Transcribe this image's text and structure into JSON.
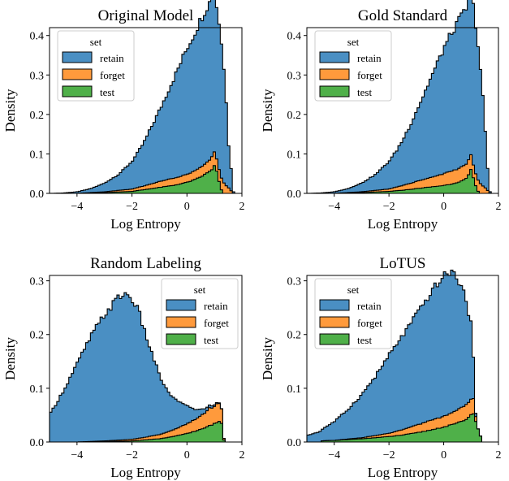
{
  "chart_data": [
    {
      "type": "area",
      "title": "Original Model",
      "xlabel": "Log Entropy",
      "ylabel": "Density",
      "xlim": [
        -5,
        2
      ],
      "ylim": [
        0,
        0.42
      ],
      "xticks": [
        -4,
        -2,
        0,
        2
      ],
      "yticks": [
        0.0,
        0.1,
        0.2,
        0.3,
        0.4
      ],
      "ytick_labels": [
        "0.0",
        "0.1",
        "0.2",
        "0.3",
        "0.4"
      ],
      "stacked": true,
      "legend": {
        "title": "set",
        "position": "top-left"
      },
      "series": [
        {
          "name": "retain",
          "color": "#4a8fc3",
          "x": [
            -5,
            -4.5,
            -4,
            -3.5,
            -3,
            -2.5,
            -2,
            -1.75,
            -1.5,
            -1.25,
            -1,
            -0.75,
            -0.5,
            -0.25,
            0,
            0.25,
            0.5,
            0.75,
            0.9,
            1.0,
            1.1,
            1.2,
            1.3,
            1.4,
            1.45,
            1.5,
            1.65,
            1.7
          ],
          "values": [
            0.0,
            0.001,
            0.004,
            0.01,
            0.022,
            0.04,
            0.07,
            0.092,
            0.118,
            0.15,
            0.18,
            0.215,
            0.25,
            0.285,
            0.32,
            0.345,
            0.375,
            0.395,
            0.405,
            0.4,
            0.385,
            0.365,
            0.32,
            0.26,
            0.19,
            0.12,
            0.03,
            0.0
          ]
        },
        {
          "name": "forget",
          "color": "#ff9a3c",
          "x": [
            -4,
            -3,
            -2,
            -1.5,
            -1,
            -0.5,
            0,
            0.3,
            0.6,
            0.8,
            0.9,
            1.0,
            1.1,
            1.2,
            1.3,
            1.4,
            1.5,
            1.6,
            1.7
          ],
          "values": [
            0.0,
            0.002,
            0.006,
            0.01,
            0.015,
            0.018,
            0.02,
            0.022,
            0.025,
            0.028,
            0.032,
            0.035,
            0.03,
            0.03,
            0.03,
            0.022,
            0.015,
            0.007,
            0.0
          ]
        },
        {
          "name": "test",
          "color": "#4fb049",
          "x": [
            -4,
            -3,
            -2,
            -1.5,
            -1,
            -0.5,
            0,
            0.3,
            0.5,
            0.7,
            0.8,
            0.9,
            1.0,
            1.1,
            1.2,
            1.3
          ],
          "values": [
            0.0,
            0.002,
            0.005,
            0.01,
            0.015,
            0.02,
            0.028,
            0.035,
            0.042,
            0.05,
            0.055,
            0.06,
            0.07,
            0.052,
            0.02,
            0.0
          ]
        }
      ]
    },
    {
      "type": "area",
      "title": "Gold Standard",
      "xlabel": "Log Entropy",
      "ylabel": "Density",
      "xlim": [
        -5,
        2
      ],
      "ylim": [
        0,
        0.42
      ],
      "xticks": [
        -4,
        -2,
        0,
        2
      ],
      "yticks": [
        0.0,
        0.1,
        0.2,
        0.3,
        0.4
      ],
      "ytick_labels": [
        "0.0",
        "0.1",
        "0.2",
        "0.3",
        "0.4"
      ],
      "stacked": true,
      "legend": {
        "title": "set",
        "position": "top-left"
      },
      "series": [
        {
          "name": "retain",
          "color": "#4a8fc3",
          "x": [
            -5,
            -4.5,
            -4,
            -3.5,
            -3,
            -2.5,
            -2,
            -1.75,
            -1.5,
            -1.25,
            -1,
            -0.75,
            -0.5,
            -0.25,
            0,
            0.25,
            0.5,
            0.75,
            0.9,
            1.0,
            1.1,
            1.2,
            1.3,
            1.4,
            1.5,
            1.55,
            1.7
          ],
          "values": [
            0.0,
            0.001,
            0.004,
            0.01,
            0.022,
            0.04,
            0.07,
            0.09,
            0.115,
            0.145,
            0.178,
            0.212,
            0.248,
            0.282,
            0.318,
            0.345,
            0.37,
            0.39,
            0.4,
            0.41,
            0.4,
            0.37,
            0.32,
            0.25,
            0.17,
            0.09,
            0.0
          ]
        },
        {
          "name": "forget",
          "color": "#ff9a3c",
          "x": [
            -4,
            -3,
            -2,
            -1.5,
            -1,
            -0.5,
            0,
            0.3,
            0.6,
            0.8,
            1.0,
            1.1,
            1.2,
            1.3,
            1.4,
            1.5,
            1.6,
            1.7
          ],
          "values": [
            0.0,
            0.002,
            0.006,
            0.012,
            0.018,
            0.024,
            0.03,
            0.033,
            0.035,
            0.036,
            0.038,
            0.03,
            0.03,
            0.028,
            0.02,
            0.015,
            0.008,
            0.0
          ]
        },
        {
          "name": "test",
          "color": "#4fb049",
          "x": [
            -4,
            -3,
            -2,
            -1.5,
            -1,
            -0.5,
            0,
            0.3,
            0.6,
            0.8,
            0.9,
            1.0,
            1.1,
            1.2,
            1.3
          ],
          "values": [
            0.0,
            0.002,
            0.005,
            0.008,
            0.012,
            0.016,
            0.02,
            0.024,
            0.03,
            0.036,
            0.045,
            0.06,
            0.035,
            0.012,
            0.0
          ]
        }
      ]
    },
    {
      "type": "area",
      "title": "Random Labeling",
      "xlabel": "Log Entropy",
      "ylabel": "Density",
      "xlim": [
        -5,
        2
      ],
      "ylim": [
        0,
        0.31
      ],
      "xticks": [
        -4,
        -2,
        0,
        2
      ],
      "yticks": [
        0.0,
        0.1,
        0.2,
        0.3
      ],
      "ytick_labels": [
        "0.0",
        "0.1",
        "0.2",
        "0.3"
      ],
      "stacked": true,
      "legend": {
        "title": "set",
        "position": "top-right"
      },
      "series": [
        {
          "name": "retain",
          "color": "#4a8fc3",
          "x": [
            -5,
            -4.5,
            -4,
            -3.5,
            -3,
            -2.5,
            -2.25,
            -2,
            -1.75,
            -1.5,
            -1.25,
            -1,
            -0.75,
            -0.5,
            -0.25,
            0,
            0.25,
            0.5,
            0.75,
            1.0,
            1.2,
            1.3,
            1.35
          ],
          "values": [
            0.05,
            0.095,
            0.145,
            0.195,
            0.235,
            0.265,
            0.272,
            0.262,
            0.235,
            0.19,
            0.15,
            0.11,
            0.08,
            0.06,
            0.045,
            0.035,
            0.02,
            0.012,
            0.006,
            0.003,
            0.001,
            0.0,
            0.0
          ]
        },
        {
          "name": "forget",
          "color": "#ff9a3c",
          "x": [
            -5,
            -4,
            -3,
            -2,
            -1.5,
            -1,
            -0.5,
            0,
            0.3,
            0.6,
            0.8,
            1.0,
            1.1,
            1.2,
            1.3,
            1.35
          ],
          "values": [
            0.0,
            0.0,
            0.001,
            0.003,
            0.005,
            0.008,
            0.012,
            0.018,
            0.022,
            0.027,
            0.032,
            0.032,
            0.035,
            0.032,
            0.022,
            0.0
          ]
        },
        {
          "name": "test",
          "color": "#4fb049",
          "x": [
            -4,
            -3,
            -2,
            -1.5,
            -1,
            -0.5,
            0,
            0.3,
            0.6,
            0.8,
            1.0,
            1.1,
            1.2,
            1.3,
            1.35
          ],
          "values": [
            0.0,
            0.001,
            0.002,
            0.004,
            0.006,
            0.01,
            0.016,
            0.02,
            0.025,
            0.03,
            0.034,
            0.036,
            0.04,
            0.03,
            0.0
          ]
        }
      ]
    },
    {
      "type": "area",
      "title": "LoTUS",
      "xlabel": "Log Entropy",
      "ylabel": "Density",
      "xlim": [
        -5,
        2
      ],
      "ylim": [
        0,
        0.31
      ],
      "xticks": [
        -4,
        -2,
        0,
        2
      ],
      "yticks": [
        0.0,
        0.1,
        0.2,
        0.3
      ],
      "ytick_labels": [
        "0.0",
        "0.1",
        "0.2",
        "0.3"
      ],
      "stacked": true,
      "legend": {
        "title": "set",
        "position": "top-left"
      },
      "series": [
        {
          "name": "retain",
          "color": "#4a8fc3",
          "x": [
            -5,
            -4.5,
            -4,
            -3.5,
            -3,
            -2.5,
            -2,
            -1.5,
            -1,
            -0.5,
            -0.25,
            0,
            0.25,
            0.5,
            0.75,
            1.0,
            1.1,
            1.15,
            1.2
          ],
          "values": [
            0.012,
            0.02,
            0.035,
            0.055,
            0.08,
            0.11,
            0.145,
            0.175,
            0.205,
            0.235,
            0.25,
            0.26,
            0.265,
            0.245,
            0.21,
            0.14,
            0.06,
            0.01,
            0.0
          ]
        },
        {
          "name": "forget",
          "color": "#ff9a3c",
          "x": [
            -4,
            -3,
            -2,
            -1.5,
            -1,
            -0.5,
            0,
            0.3,
            0.6,
            0.8,
            1.0,
            1.1,
            1.2
          ],
          "values": [
            0.0,
            0.002,
            0.006,
            0.01,
            0.014,
            0.018,
            0.02,
            0.022,
            0.025,
            0.028,
            0.028,
            0.028,
            0.0
          ]
        },
        {
          "name": "test",
          "color": "#4fb049",
          "x": [
            -4.5,
            -4,
            -3,
            -2,
            -1.5,
            -1,
            -0.5,
            0,
            0.3,
            0.6,
            0.8,
            1.0,
            1.1,
            1.2,
            1.3,
            1.4
          ],
          "values": [
            0.002,
            0.003,
            0.006,
            0.01,
            0.013,
            0.017,
            0.022,
            0.028,
            0.032,
            0.037,
            0.042,
            0.05,
            0.055,
            0.03,
            0.02,
            0.0
          ]
        }
      ]
    }
  ]
}
